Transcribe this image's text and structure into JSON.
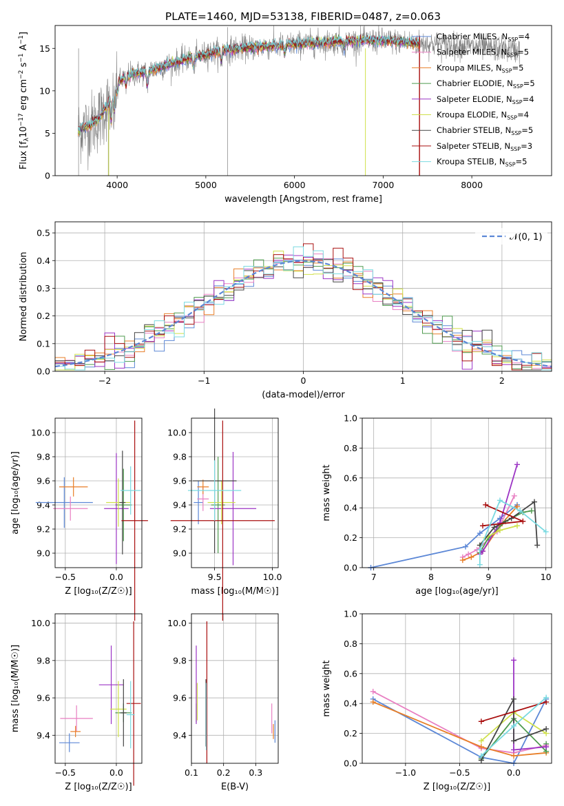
{
  "title": "PLATE=1460, MJD=53138, FIBERID=0487, z=0.063",
  "colors": {
    "Chabrier MILES": "#5b87d6",
    "Salpeter MILES": "#e87fc2",
    "Kroupa MILES": "#e87e27",
    "Chabrier ELODIE": "#4e9a4e",
    "Salpeter ELODIE": "#9b33c4",
    "Kroupa ELODIE": "#cfe04a",
    "Chabrier STELIB": "#444444",
    "Salpeter STELIB": "#a80d0d",
    "Kroupa STELIB": "#79d9e0"
  },
  "chart_data": [
    {
      "id": "spectrum",
      "type": "line",
      "title": "PLATE=1460, MJD=53138, FIBERID=0487, z=0.063",
      "xlabel": "wavelength [Angstrom, rest frame]",
      "ylabel": "Flux [f$_\\lambda$10$^{-17}$ erg cm$^{-2}$ s$^{-1}$ A$^{-1}$]",
      "xlim": [
        3300,
        8900
      ],
      "ylim": [
        0,
        17.7
      ],
      "xticks": [
        "4000",
        "5000",
        "6000",
        "7000",
        "8000"
      ],
      "yticks": [
        "0",
        "5",
        "10",
        "15"
      ],
      "grid": false,
      "legend_position": "right",
      "legend": [
        {
          "label": "Chabrier MILES, N",
          "sub": "SSP",
          "tail": "=4"
        },
        {
          "label": "Salpeter MILES, N",
          "sub": "SSP",
          "tail": "=5"
        },
        {
          "label": "Kroupa MILES, N",
          "sub": "SSP",
          "tail": "=5"
        },
        {
          "label": "Chabrier ELODIE, N",
          "sub": "SSP",
          "tail": "=5"
        },
        {
          "label": "Salpeter ELODIE, N",
          "sub": "SSP",
          "tail": "=4"
        },
        {
          "label": "Kroupa ELODIE, N",
          "sub": "SSP",
          "tail": "=4"
        },
        {
          "label": "Chabrier STELIB, N",
          "sub": "SSP",
          "tail": "=5"
        },
        {
          "label": "Salpeter STELIB, N",
          "sub": "SSP",
          "tail": "=3"
        },
        {
          "label": "Kroupa STELIB, N",
          "sub": "SSP",
          "tail": "=5"
        }
      ],
      "continuum": {
        "x": [
          3560,
          3600,
          3700,
          3800,
          3900,
          4000,
          4100,
          4300,
          4500,
          4800,
          5000,
          5200,
          5500,
          5800,
          6000,
          6200,
          6500,
          6800,
          7000,
          7200,
          7400,
          7600,
          7800,
          8000,
          8200,
          8500
        ],
        "y": [
          5.2,
          5.6,
          6.0,
          6.8,
          8.5,
          10.8,
          11.8,
          12.2,
          12.8,
          13.8,
          14.3,
          14.8,
          15.1,
          15.3,
          15.5,
          15.6,
          15.8,
          15.9,
          15.9,
          15.8,
          15.6,
          15.5,
          15.3,
          15.2,
          15.0,
          14.8
        ]
      },
      "model_xrange": [
        3560,
        7410
      ]
    },
    {
      "id": "residuals",
      "type": "bar",
      "xlabel": "(data-model)/error",
      "ylabel": "Normed distribution",
      "xlim": [
        -2.5,
        2.5
      ],
      "ylim": [
        0,
        0.54
      ],
      "xticks": [
        "−2",
        "−1",
        "0",
        "1",
        "2"
      ],
      "yticks": [
        "0.0",
        "0.1",
        "0.2",
        "0.3",
        "0.4",
        "0.5"
      ],
      "grid": true,
      "legend_position": "top-right",
      "legend_label": "𝒩(0, 1)",
      "gaussian": {
        "mean": 0,
        "sigma": 1
      },
      "bin_edges_range": [
        -2.5,
        2.5
      ],
      "bin_width": 0.1
    },
    {
      "id": "age-vs-z",
      "type": "scatter",
      "xlabel": "Z [log₁₀(Z/Z☉)]",
      "ylabel": "age  [log₁₀(age/yr)]",
      "xlim": [
        -0.6,
        0.25
      ],
      "ylim": [
        8.88,
        10.12
      ],
      "xticks": [
        "−0.5",
        "0.0"
      ],
      "yticks": [
        "9.0",
        "9.2",
        "9.4",
        "9.6",
        "9.8",
        "10.0"
      ],
      "grid": true,
      "points": [
        {
          "model": "Chabrier MILES",
          "x": -0.51,
          "y": 9.42,
          "xerr": 0.28,
          "yerr": 0.21
        },
        {
          "model": "Salpeter MILES",
          "x": -0.45,
          "y": 9.37,
          "xerr": 0.17,
          "yerr": 0.1
        },
        {
          "model": "Kroupa MILES",
          "x": -0.42,
          "y": 9.55,
          "xerr": 0.14,
          "yerr": 0.08
        },
        {
          "model": "Chabrier ELODIE",
          "x": 0.07,
          "y": 9.4,
          "xerr": 0.08,
          "yerr": 0.3
        },
        {
          "model": "Salpeter ELODIE",
          "x": 0.0,
          "y": 9.37,
          "xerr": 0.12,
          "yerr": 0.46
        },
        {
          "model": "Kroupa ELODIE",
          "x": 0.02,
          "y": 9.42,
          "xerr": 0.12,
          "yerr": 0.2
        },
        {
          "model": "Chabrier STELIB",
          "x": 0.06,
          "y": 9.42,
          "xerr": 0.03,
          "yerr": 0.43
        },
        {
          "model": "Salpeter STELIB",
          "x": 0.18,
          "y": 9.27,
          "xerr": 0.13,
          "yerr": 0.83
        },
        {
          "model": "Kroupa STELIB",
          "x": 0.14,
          "y": 9.52,
          "xerr": 0.1,
          "yerr": 0.2
        }
      ]
    },
    {
      "id": "age-vs-mass",
      "type": "scatter",
      "xlabel": "mass [log₁₀(M/M☉)]",
      "ylabel": "",
      "xlim": [
        9.3,
        10.05
      ],
      "ylim": [
        8.88,
        10.12
      ],
      "xticks": [
        "9.5",
        "10.0"
      ],
      "yticks": [
        "9.0",
        "9.2",
        "9.4",
        "9.6",
        "9.8",
        "10.0"
      ],
      "grid": true,
      "points": [
        {
          "model": "Chabrier MILES",
          "x": 9.36,
          "y": 9.42,
          "xerr": 0.04,
          "yerr": 0.18
        },
        {
          "model": "Salpeter MILES",
          "x": 9.4,
          "y": 9.45,
          "xerr": 0.05,
          "yerr": 0.1
        },
        {
          "model": "Kroupa MILES",
          "x": 9.4,
          "y": 9.55,
          "xerr": 0.05,
          "yerr": 0.06
        },
        {
          "model": "Chabrier ELODIE",
          "x": 9.53,
          "y": 9.4,
          "xerr": 0.06,
          "yerr": 0.4
        },
        {
          "model": "Salpeter ELODIE",
          "x": 9.66,
          "y": 9.37,
          "xerr": 0.2,
          "yerr": 0.47
        },
        {
          "model": "Kroupa ELODIE",
          "x": 9.56,
          "y": 9.42,
          "xerr": 0.12,
          "yerr": 0.18
        },
        {
          "model": "Chabrier STELIB",
          "x": 9.5,
          "y": 9.6,
          "xerr": 0.19,
          "yerr": 0.6
        },
        {
          "model": "Salpeter STELIB",
          "x": 9.57,
          "y": 9.27,
          "xerr": 0.45,
          "yerr": 0.83
        },
        {
          "model": "Kroupa STELIB",
          "x": 9.5,
          "y": 9.52,
          "xerr": 0.23,
          "yerr": 0.25
        }
      ]
    },
    {
      "id": "mass-weight-vs-age",
      "type": "line",
      "xlabel": "age  [log₁₀(age/yr)]",
      "ylabel": "mass weight",
      "xlim": [
        6.8,
        10.1
      ],
      "ylim": [
        0,
        1.0
      ],
      "xticks": [
        "7",
        "8",
        "9",
        "10"
      ],
      "yticks": [
        "0.0",
        "0.2",
        "0.4",
        "0.6",
        "0.8",
        "1.0"
      ],
      "grid": true,
      "series": [
        {
          "model": "Chabrier MILES",
          "x": [
            6.95,
            8.6,
            8.85,
            9.2,
            9.5
          ],
          "y": [
            0.0,
            0.14,
            0.23,
            0.33,
            0.42
          ]
        },
        {
          "model": "Salpeter MILES",
          "x": [
            8.55,
            8.65,
            8.8,
            9.15,
            9.45
          ],
          "y": [
            0.07,
            0.09,
            0.12,
            0.24,
            0.48
          ]
        },
        {
          "model": "Kroupa MILES",
          "x": [
            8.55,
            8.7,
            8.9,
            9.2,
            9.5
          ],
          "y": [
            0.05,
            0.07,
            0.11,
            0.28,
            0.41
          ]
        },
        {
          "model": "Chabrier ELODIE",
          "x": [
            8.85,
            9.0,
            9.3,
            9.6,
            9.75
          ],
          "y": [
            0.1,
            0.2,
            0.31,
            0.37,
            0.38
          ]
        },
        {
          "model": "Salpeter ELODIE",
          "x": [
            8.85,
            8.9,
            9.2,
            9.5
          ],
          "y": [
            0.09,
            0.11,
            0.3,
            0.69
          ]
        },
        {
          "model": "Kroupa ELODIE",
          "x": [
            8.85,
            8.95,
            9.2,
            9.5
          ],
          "y": [
            0.15,
            0.2,
            0.25,
            0.28
          ]
        },
        {
          "model": "Chabrier STELIB",
          "x": [
            8.85,
            9.1,
            9.4,
            9.8,
            9.85
          ],
          "y": [
            0.15,
            0.27,
            0.33,
            0.44,
            0.15
          ]
        },
        {
          "model": "Salpeter STELIB",
          "x": [
            8.95,
            9.6,
            8.9
          ],
          "y": [
            0.42,
            0.31,
            0.28
          ]
        },
        {
          "model": "Kroupa STELIB",
          "x": [
            8.85,
            8.85,
            9.2,
            9.55,
            10.0
          ],
          "y": [
            0.02,
            0.12,
            0.45,
            0.38,
            0.24
          ]
        }
      ]
    },
    {
      "id": "mass-vs-z",
      "type": "scatter",
      "xlabel": "Z [log₁₀(Z/Z☉)]",
      "ylabel": "mass [log₁₀(M/M☉)]",
      "xlim": [
        -0.6,
        0.25
      ],
      "ylim": [
        9.25,
        10.05
      ],
      "xticks": [
        "−0.5",
        "0.0"
      ],
      "yticks": [
        "9.4",
        "9.6",
        "9.8",
        "10.0"
      ],
      "grid": true,
      "points": [
        {
          "model": "Chabrier MILES",
          "x": -0.46,
          "y": 9.36,
          "xerr": 0.1,
          "yerr": 0.05
        },
        {
          "model": "Salpeter MILES",
          "x": -0.39,
          "y": 9.49,
          "xerr": 0.16,
          "yerr": 0.07
        },
        {
          "model": "Kroupa MILES",
          "x": -0.4,
          "y": 9.42,
          "xerr": 0.05,
          "yerr": 0.03
        },
        {
          "model": "Chabrier ELODIE",
          "x": 0.07,
          "y": 9.52,
          "xerr": 0.08,
          "yerr": 0.05
        },
        {
          "model": "Salpeter ELODIE",
          "x": -0.05,
          "y": 9.67,
          "xerr": 0.12,
          "yerr": 0.21
        },
        {
          "model": "Kroupa ELODIE",
          "x": 0.02,
          "y": 9.54,
          "xerr": 0.08,
          "yerr": 0.15
        },
        {
          "model": "Chabrier STELIB",
          "x": 0.07,
          "y": 9.52,
          "xerr": 0.03,
          "yerr": 0.18
        },
        {
          "model": "Salpeter STELIB",
          "x": 0.17,
          "y": 9.57,
          "xerr": 0.07,
          "yerr": 0.44
        },
        {
          "model": "Kroupa STELIB",
          "x": 0.14,
          "y": 9.51,
          "xerr": 0.04,
          "yerr": 0.18
        }
      ]
    },
    {
      "id": "mass-vs-ebv",
      "type": "scatter",
      "xlabel": "E(B-V)",
      "ylabel": "",
      "xlim": [
        0.1,
        0.37
      ],
      "ylim": [
        9.25,
        10.05
      ],
      "xticks": [
        "0.1",
        "0.2",
        "0.3"
      ],
      "yticks": [
        "9.4",
        "9.6",
        "9.8",
        "10.0"
      ],
      "grid": true,
      "points": [
        {
          "model": "Chabrier MILES",
          "x": 0.36,
          "y": 9.42,
          "yerr": 0.06
        },
        {
          "model": "Salpeter MILES",
          "x": 0.35,
          "y": 9.49,
          "yerr": 0.08
        },
        {
          "model": "Kroupa MILES",
          "x": 0.355,
          "y": 9.42,
          "yerr": 0.04
        },
        {
          "model": "Chabrier ELODIE",
          "x": 0.115,
          "y": 9.52,
          "yerr": 0.05
        },
        {
          "model": "Salpeter ELODIE",
          "x": 0.115,
          "y": 9.67,
          "yerr": 0.21
        },
        {
          "model": "Kroupa ELODIE",
          "x": 0.118,
          "y": 9.58,
          "yerr": 0.1
        },
        {
          "model": "Chabrier STELIB",
          "x": 0.145,
          "y": 9.52,
          "yerr": 0.18
        },
        {
          "model": "Salpeter STELIB",
          "x": 0.148,
          "y": 9.63,
          "yerr": 0.38
        },
        {
          "model": "Kroupa STELIB",
          "x": 0.146,
          "y": 9.5,
          "yerr": 0.18
        }
      ]
    },
    {
      "id": "mass-weight-vs-z",
      "type": "line",
      "xlabel": "Z [log₁₀(Z/Z☉)]",
      "ylabel": "mass weight",
      "xlim": [
        -1.4,
        0.35
      ],
      "ylim": [
        0,
        1.0
      ],
      "xticks": [
        "−1.0",
        "−0.5",
        "0.0"
      ],
      "yticks": [
        "0.0",
        "0.2",
        "0.4",
        "0.6",
        "0.8",
        "1.0"
      ],
      "grid": true,
      "series": [
        {
          "model": "Chabrier MILES",
          "x": [
            -1.3,
            -0.3,
            0.0,
            0.3
          ],
          "y": [
            0.43,
            0.04,
            0.0,
            0.43
          ]
        },
        {
          "model": "Salpeter MILES",
          "x": [
            -1.3,
            -0.3,
            0.0,
            0.3
          ],
          "y": [
            0.48,
            0.1,
            0.07,
            0.12
          ]
        },
        {
          "model": "Kroupa MILES",
          "x": [
            -1.3,
            -0.3,
            0.0,
            0.3
          ],
          "y": [
            0.41,
            0.11,
            0.05,
            0.07
          ]
        },
        {
          "model": "Chabrier ELODIE",
          "x": [
            -0.3,
            0.0,
            0.3,
            0.3
          ],
          "y": [
            0.03,
            0.3,
            0.08,
            0.13
          ]
        },
        {
          "model": "Salpeter ELODIE",
          "x": [
            0.0,
            0.0,
            0.3
          ],
          "y": [
            0.69,
            0.09,
            0.11
          ]
        },
        {
          "model": "Kroupa ELODIE",
          "x": [
            -0.3,
            0.0,
            0.3
          ],
          "y": [
            0.15,
            0.34,
            0.2
          ]
        },
        {
          "model": "Chabrier STELIB",
          "x": [
            -0.3,
            0.0,
            0.0,
            0.3
          ],
          "y": [
            0.02,
            0.43,
            0.15,
            0.23
          ]
        },
        {
          "model": "Salpeter STELIB",
          "x": [
            -0.3,
            0.3
          ],
          "y": [
            0.28,
            0.41
          ]
        },
        {
          "model": "Kroupa STELIB",
          "x": [
            -0.3,
            0.0,
            0.3
          ],
          "y": [
            0.05,
            0.25,
            0.44
          ]
        }
      ]
    }
  ]
}
